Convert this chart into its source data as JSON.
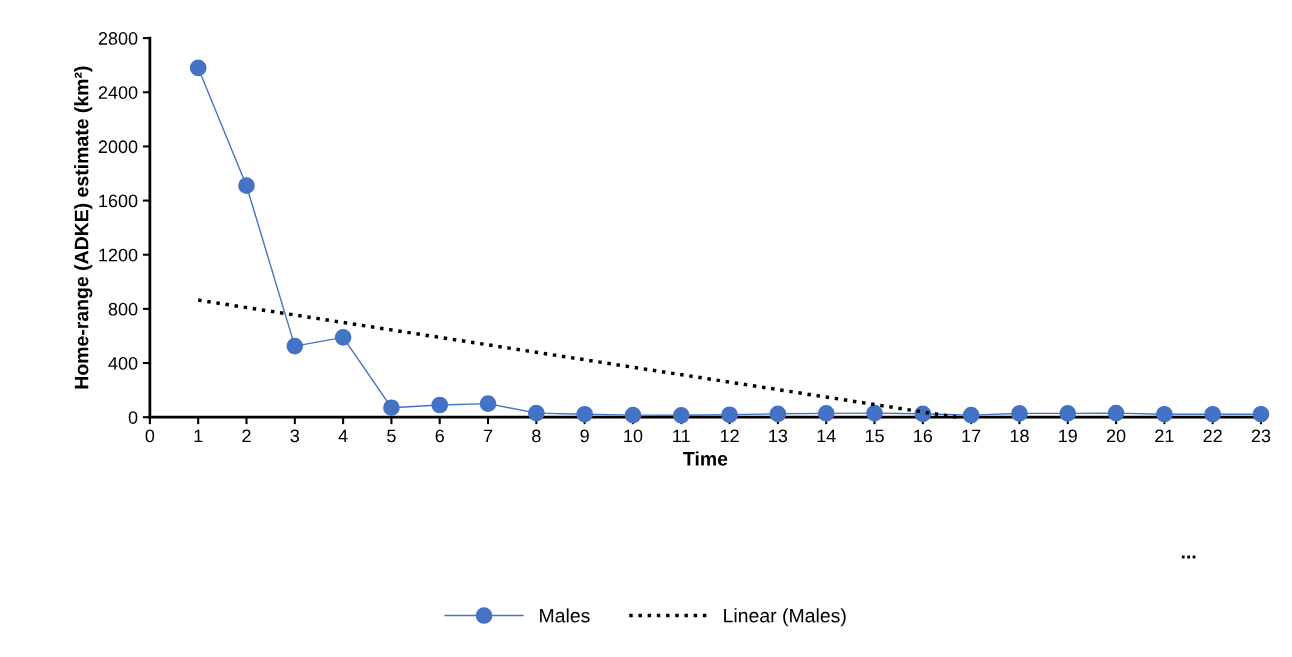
{
  "chart_data": {
    "type": "line",
    "xlabel": "Time",
    "ylabel": "Home-range (ADKE) estimate (km²)",
    "x": [
      1,
      2,
      3,
      4,
      5,
      6,
      7,
      8,
      9,
      10,
      11,
      12,
      13,
      14,
      15,
      16,
      17,
      18,
      19,
      20,
      21,
      22,
      23
    ],
    "series": [
      {
        "name": "Males",
        "color": "#4472c4",
        "marker": "circle",
        "line_style": "solid",
        "values": [
          2580,
          1710,
          525,
          590,
          70,
          90,
          100,
          30,
          22,
          15,
          14,
          18,
          25,
          28,
          30,
          25,
          15,
          28,
          28,
          30,
          22,
          22,
          22
        ]
      },
      {
        "name": "Linear (Males)",
        "color": "#000000",
        "marker": "none",
        "line_style": "dotted",
        "x": [
          1,
          16.7
        ],
        "values": [
          865,
          0
        ]
      }
    ],
    "xlim": [
      0,
      23
    ],
    "xticks": [
      0,
      1,
      2,
      3,
      4,
      5,
      6,
      7,
      8,
      9,
      10,
      11,
      12,
      13,
      14,
      15,
      16,
      17,
      18,
      19,
      20,
      21,
      22,
      23
    ],
    "ylim": [
      0,
      2800
    ],
    "yticks": [
      0,
      400,
      800,
      1200,
      1600,
      2000,
      2400,
      2800
    ],
    "grid": false,
    "legend": "bottom",
    "annotations": [
      "..."
    ]
  }
}
